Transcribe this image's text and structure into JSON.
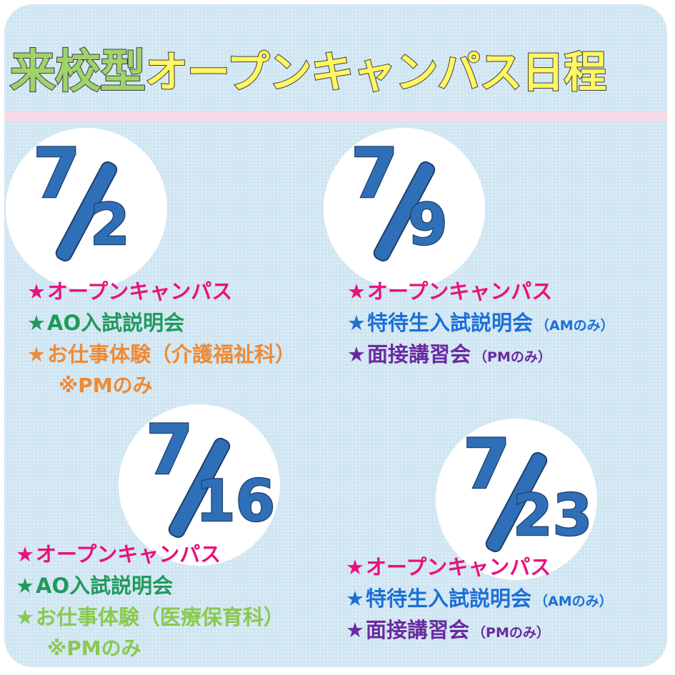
{
  "title": {
    "part1": "来校型",
    "part2": "オープンキャンパス日程"
  },
  "colors": {
    "background": "#cfe5f2",
    "band": "#f6dbe6",
    "date_blue": "#2f6fb8",
    "pink": "#e8127c",
    "green": "#1f9a5c",
    "orange": "#ef8a35",
    "lime": "#8ac94f",
    "blue": "#1d6fd6",
    "purple": "#6a2aa0"
  },
  "events": [
    {
      "date": {
        "month": "7",
        "day": "2"
      },
      "items": [
        {
          "star": "★",
          "text": "オープンキャンパス",
          "note": ""
        },
        {
          "star": "★",
          "text": "AO入試説明会",
          "note": ""
        },
        {
          "star": "★",
          "text": "お仕事体験（介護福祉科）",
          "note": ""
        }
      ],
      "sub_note": "※PMのみ"
    },
    {
      "date": {
        "month": "7",
        "day": "9"
      },
      "items": [
        {
          "star": "★",
          "text": "オープンキャンパス",
          "note": ""
        },
        {
          "star": "★",
          "text": "特待生入試説明会",
          "note": "（AMのみ）"
        },
        {
          "star": "★",
          "text": "面接講習会",
          "note": "（PMのみ）"
        }
      ],
      "sub_note": ""
    },
    {
      "date": {
        "month": "7",
        "day": "16"
      },
      "items": [
        {
          "star": "★",
          "text": "オープンキャンパス",
          "note": ""
        },
        {
          "star": "★",
          "text": "AO入試説明会",
          "note": ""
        },
        {
          "star": "★",
          "text": "お仕事体験（医療保育科）",
          "note": ""
        }
      ],
      "sub_note": "※PMのみ"
    },
    {
      "date": {
        "month": "7",
        "day": "23"
      },
      "items": [
        {
          "star": "★",
          "text": "オープンキャンパス",
          "note": ""
        },
        {
          "star": "★",
          "text": "特待生入試説明会",
          "note": "（AMのみ）"
        },
        {
          "star": "★",
          "text": "面接講習会",
          "note": "（PMのみ）"
        }
      ],
      "sub_note": ""
    }
  ]
}
